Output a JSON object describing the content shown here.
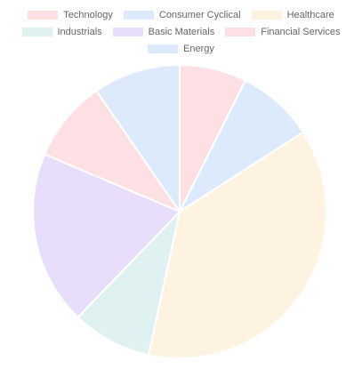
{
  "chart_data": {
    "type": "pie",
    "title": "",
    "legend_position": "top",
    "categories": [
      "Technology",
      "Consumer Cyclical",
      "Healthcare",
      "Industrials",
      "Basic Materials",
      "Financial Services",
      "Energy"
    ],
    "values": [
      7.4,
      8.5,
      37.5,
      8.8,
      19.2,
      9.0,
      9.6
    ],
    "colors": [
      "#fde0e4",
      "#dceafb",
      "#fdf3e0",
      "#dff1f1",
      "#e8defc",
      "#fde0e4",
      "#dceafb"
    ],
    "slice_border_color": "#ffffff"
  }
}
